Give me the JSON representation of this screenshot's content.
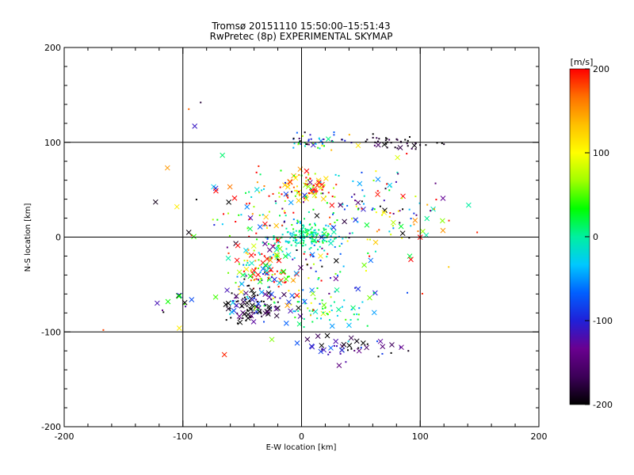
{
  "chart_data": {
    "type": "scatter",
    "title": "Tromsø 20151110 15:50:00–15:51:43",
    "subtitle": "RwPretec (8p) EXPERIMENTAL SKYMAP",
    "xlabel": "E-W location [km]",
    "ylabel": "N-S location [km]",
    "xlim": [
      -200,
      200
    ],
    "ylim": [
      -200,
      200
    ],
    "xticks": [
      "-200",
      "-100",
      "0",
      "100",
      "200"
    ],
    "yticks": [
      "-200",
      "-100",
      "0",
      "100",
      "200"
    ],
    "grid_lines": [
      -100,
      0,
      100
    ],
    "colorbar": {
      "label": "[m/s]",
      "min": -200,
      "max": 200,
      "ticks": [
        "200",
        "100",
        "0",
        "-100",
        "-200"
      ],
      "colormap": [
        "#000000",
        "#3c0058",
        "#6a0090",
        "#2020d8",
        "#0060ff",
        "#00c8ff",
        "#00f0a0",
        "#00ff00",
        "#a0ff00",
        "#ffff00",
        "#ffc000",
        "#ff7000",
        "#ff0000"
      ]
    },
    "markers": {
      "dot": "small dot (single echo)",
      "cross": "x (strong echo)"
    },
    "clusters": [
      {
        "cx": 5,
        "cy": 2,
        "sx": 14,
        "sy": 8,
        "n": 180,
        "vmean": 0,
        "vspread": 25,
        "xfrac": 0.05
      },
      {
        "cx": 2,
        "cy": 53,
        "sx": 12,
        "sy": 8,
        "n": 90,
        "vmean": 120,
        "vspread": 80,
        "xfrac": 0.25
      },
      {
        "cx": 10,
        "cy": 100,
        "sx": 12,
        "sy": 5,
        "n": 45,
        "vmean": -60,
        "vspread": 120,
        "xfrac": 0.15
      },
      {
        "cx": 75,
        "cy": 100,
        "sx": 20,
        "sy": 4,
        "n": 40,
        "vmean": -190,
        "vspread": 15,
        "xfrac": 0.1
      },
      {
        "cx": -35,
        "cy": -30,
        "sx": 14,
        "sy": 14,
        "n": 120,
        "vmean": 60,
        "vspread": 160,
        "xfrac": 0.35
      },
      {
        "cx": -40,
        "cy": -72,
        "sx": 15,
        "sy": 10,
        "n": 110,
        "vmean": -150,
        "vspread": 90,
        "xfrac": 0.4
      },
      {
        "cx": 35,
        "cy": -118,
        "sx": 22,
        "sy": 8,
        "n": 45,
        "vmean": -140,
        "vspread": 50,
        "xfrac": 0.6
      },
      {
        "cx": 20,
        "cy": -75,
        "sx": 20,
        "sy": 10,
        "n": 60,
        "vmean": 10,
        "vspread": 40,
        "xfrac": 0.1
      },
      {
        "cx": 50,
        "cy": 30,
        "sx": 30,
        "sy": 20,
        "n": 100,
        "vmean": -20,
        "vspread": 140,
        "xfrac": 0.3
      },
      {
        "cx": -45,
        "cy": 30,
        "sx": 25,
        "sy": 25,
        "n": 70,
        "vmean": 80,
        "vspread": 150,
        "xfrac": 0.3
      },
      {
        "cx": 5,
        "cy": -40,
        "sx": 35,
        "sy": 25,
        "n": 90,
        "vmean": 20,
        "vspread": 120,
        "xfrac": 0.2
      },
      {
        "cx": -110,
        "cy": -70,
        "sx": 8,
        "sy": 8,
        "n": 12,
        "vmean": -50,
        "vspread": 80,
        "xfrac": 0.7
      },
      {
        "cx": 90,
        "cy": 20,
        "sx": 20,
        "sy": 30,
        "n": 30,
        "vmean": 50,
        "vspread": 150,
        "xfrac": 0.4
      }
    ],
    "outliers": [
      {
        "x": -90,
        "y": 117,
        "v": -110,
        "m": "cross"
      },
      {
        "x": -95,
        "y": 135,
        "v": 170,
        "m": "dot"
      },
      {
        "x": -85,
        "y": 142,
        "v": -180,
        "m": "dot"
      },
      {
        "x": -113,
        "y": 73,
        "v": 150,
        "m": "cross"
      },
      {
        "x": -123,
        "y": 37,
        "v": -190,
        "m": "cross"
      },
      {
        "x": -105,
        "y": 32,
        "v": 110,
        "m": "cross"
      },
      {
        "x": -95,
        "y": 5,
        "v": -195,
        "m": "cross"
      },
      {
        "x": -167,
        "y": -98,
        "v": 180,
        "m": "dot"
      },
      {
        "x": -103,
        "y": -96,
        "v": 110,
        "m": "cross"
      },
      {
        "x": -65,
        "y": -124,
        "v": 190,
        "m": "cross"
      },
      {
        "x": 148,
        "y": 5,
        "v": 190,
        "m": "dot"
      },
      {
        "x": 120,
        "y": 98,
        "v": -190,
        "m": "dot"
      },
      {
        "x": 90,
        "y": -120,
        "v": -190,
        "m": "dot"
      },
      {
        "x": -25,
        "y": -108,
        "v": 60,
        "m": "cross"
      }
    ]
  }
}
